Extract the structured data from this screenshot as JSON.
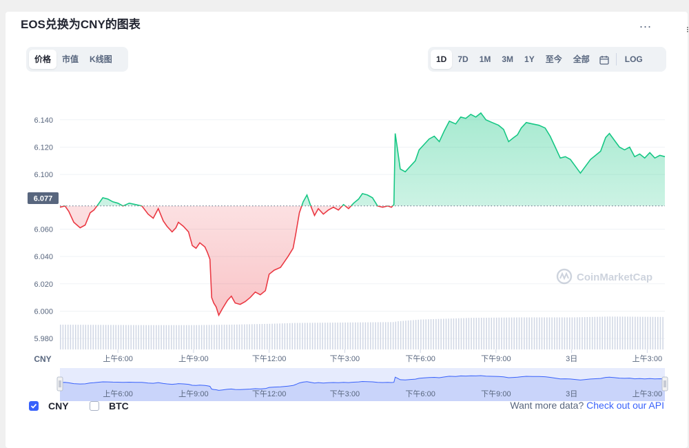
{
  "header": {
    "title": "EOS兑换为CNY的图表",
    "more_label": "..."
  },
  "chart_tabs": [
    "价格",
    "市值",
    "K线图"
  ],
  "active_chart_tab": 0,
  "ranges": [
    "1D",
    "7D",
    "1M",
    "3M",
    "1Y",
    "至今",
    "全部"
  ],
  "active_range": 0,
  "log_label": "LOG",
  "legend": {
    "cny_label": "CNY",
    "cny_checked": true,
    "btc_label": "BTC",
    "btc_checked": false
  },
  "footer": {
    "text": "Want more data?",
    "link": "Check out our API"
  },
  "watermark": "CoinMarketCap",
  "colors": {
    "up": "#16c784",
    "down": "#ea3943",
    "accent": "#3861fb",
    "volume": "#cfd6e4"
  },
  "chart_data": {
    "type": "line",
    "currency_label": "CNY",
    "baseline": 6.077,
    "current_label": "6.077",
    "ylim": [
      5.972,
      6.152
    ],
    "yticks": [
      6.14,
      6.12,
      6.1,
      6.06,
      6.04,
      6.02,
      6.0,
      5.98
    ],
    "ytick_labels": [
      "6.140",
      "6.120",
      "6.100",
      "6.060",
      "6.040",
      "6.020",
      "6.000",
      "5.980"
    ],
    "x_tick_labels": [
      "上午6:00",
      "上午9:00",
      "下午12:00",
      "下午3:00",
      "下午6:00",
      "下午9:00",
      "3日",
      "上午3:00"
    ],
    "x_tick_hours": [
      6,
      9,
      12,
      15,
      18,
      21,
      24,
      27
    ],
    "x_range_hours": [
      3.7,
      27.7
    ],
    "price": [
      [
        3.7,
        6.076
      ],
      [
        3.9,
        6.077
      ],
      [
        4.05,
        6.073
      ],
      [
        4.25,
        6.065
      ],
      [
        4.5,
        6.061
      ],
      [
        4.7,
        6.063
      ],
      [
        4.9,
        6.072
      ],
      [
        5.05,
        6.074
      ],
      [
        5.25,
        6.079
      ],
      [
        5.4,
        6.083
      ],
      [
        5.6,
        6.082
      ],
      [
        5.8,
        6.08
      ],
      [
        6.0,
        6.079
      ],
      [
        6.2,
        6.077
      ],
      [
        6.45,
        6.079
      ],
      [
        6.7,
        6.078
      ],
      [
        6.95,
        6.077
      ],
      [
        7.2,
        6.071
      ],
      [
        7.4,
        6.068
      ],
      [
        7.6,
        6.075
      ],
      [
        7.8,
        6.066
      ],
      [
        7.95,
        6.062
      ],
      [
        8.15,
        6.058
      ],
      [
        8.3,
        6.061
      ],
      [
        8.4,
        6.065
      ],
      [
        8.6,
        6.062
      ],
      [
        8.8,
        6.058
      ],
      [
        8.95,
        6.048
      ],
      [
        9.1,
        6.046
      ],
      [
        9.25,
        6.05
      ],
      [
        9.45,
        6.047
      ],
      [
        9.55,
        6.043
      ],
      [
        9.65,
        6.038
      ],
      [
        9.72,
        6.01
      ],
      [
        9.8,
        6.006
      ],
      [
        9.9,
        6.003
      ],
      [
        10.0,
        5.997
      ],
      [
        10.15,
        6.002
      ],
      [
        10.35,
        6.008
      ],
      [
        10.5,
        6.011
      ],
      [
        10.65,
        6.006
      ],
      [
        10.85,
        6.005
      ],
      [
        11.05,
        6.007
      ],
      [
        11.25,
        6.01
      ],
      [
        11.45,
        6.014
      ],
      [
        11.65,
        6.012
      ],
      [
        11.85,
        6.015
      ],
      [
        12.0,
        6.027
      ],
      [
        12.2,
        6.03
      ],
      [
        12.45,
        6.032
      ],
      [
        12.6,
        6.036
      ],
      [
        12.75,
        6.04
      ],
      [
        12.95,
        6.046
      ],
      [
        13.05,
        6.056
      ],
      [
        13.2,
        6.072
      ],
      [
        13.35,
        6.08
      ],
      [
        13.5,
        6.085
      ],
      [
        13.65,
        6.077
      ],
      [
        13.8,
        6.07
      ],
      [
        13.95,
        6.075
      ],
      [
        14.15,
        6.071
      ],
      [
        14.35,
        6.074
      ],
      [
        14.55,
        6.076
      ],
      [
        14.75,
        6.074
      ],
      [
        14.95,
        6.078
      ],
      [
        15.15,
        6.075
      ],
      [
        15.35,
        6.079
      ],
      [
        15.55,
        6.082
      ],
      [
        15.7,
        6.086
      ],
      [
        15.9,
        6.085
      ],
      [
        16.1,
        6.083
      ],
      [
        16.3,
        6.077
      ],
      [
        16.5,
        6.076
      ],
      [
        16.7,
        6.077
      ],
      [
        16.85,
        6.076
      ],
      [
        16.95,
        6.078
      ],
      [
        17.0,
        6.13
      ],
      [
        17.08,
        6.12
      ],
      [
        17.2,
        6.104
      ],
      [
        17.4,
        6.102
      ],
      [
        17.6,
        6.106
      ],
      [
        17.8,
        6.11
      ],
      [
        17.95,
        6.118
      ],
      [
        18.15,
        6.122
      ],
      [
        18.35,
        6.126
      ],
      [
        18.55,
        6.128
      ],
      [
        18.75,
        6.124
      ],
      [
        18.95,
        6.132
      ],
      [
        19.15,
        6.139
      ],
      [
        19.4,
        6.137
      ],
      [
        19.6,
        6.142
      ],
      [
        19.8,
        6.141
      ],
      [
        20.0,
        6.144
      ],
      [
        20.2,
        6.142
      ],
      [
        20.4,
        6.145
      ],
      [
        20.6,
        6.14
      ],
      [
        20.85,
        6.138
      ],
      [
        21.1,
        6.136
      ],
      [
        21.3,
        6.133
      ],
      [
        21.5,
        6.124
      ],
      [
        21.7,
        6.127
      ],
      [
        21.85,
        6.129
      ],
      [
        22.0,
        6.134
      ],
      [
        22.2,
        6.138
      ],
      [
        22.45,
        6.137
      ],
      [
        22.7,
        6.136
      ],
      [
        22.95,
        6.134
      ],
      [
        23.15,
        6.128
      ],
      [
        23.35,
        6.12
      ],
      [
        23.55,
        6.112
      ],
      [
        23.75,
        6.113
      ],
      [
        23.95,
        6.111
      ],
      [
        24.15,
        6.106
      ],
      [
        24.35,
        6.101
      ],
      [
        24.55,
        6.106
      ],
      [
        24.75,
        6.111
      ],
      [
        24.95,
        6.114
      ],
      [
        25.15,
        6.117
      ],
      [
        25.35,
        6.127
      ],
      [
        25.5,
        6.13
      ],
      [
        25.7,
        6.125
      ],
      [
        25.9,
        6.12
      ],
      [
        26.1,
        6.118
      ],
      [
        26.3,
        6.12
      ],
      [
        26.5,
        6.113
      ],
      [
        26.7,
        6.115
      ],
      [
        26.9,
        6.112
      ],
      [
        27.1,
        6.116
      ],
      [
        27.3,
        6.112
      ],
      [
        27.5,
        6.114
      ],
      [
        27.7,
        6.113
      ]
    ],
    "volume_series": [
      [
        3.7,
        0.58
      ],
      [
        7.0,
        0.57
      ],
      [
        9.0,
        0.57
      ],
      [
        10.5,
        0.58
      ],
      [
        12.0,
        0.6
      ],
      [
        13.0,
        0.62
      ],
      [
        15.0,
        0.63
      ],
      [
        16.9,
        0.64
      ],
      [
        17.1,
        0.66
      ],
      [
        18.0,
        0.7
      ],
      [
        20.0,
        0.74
      ],
      [
        22.0,
        0.75
      ],
      [
        24.0,
        0.75
      ],
      [
        25.5,
        0.77
      ],
      [
        27.7,
        0.76
      ]
    ]
  }
}
